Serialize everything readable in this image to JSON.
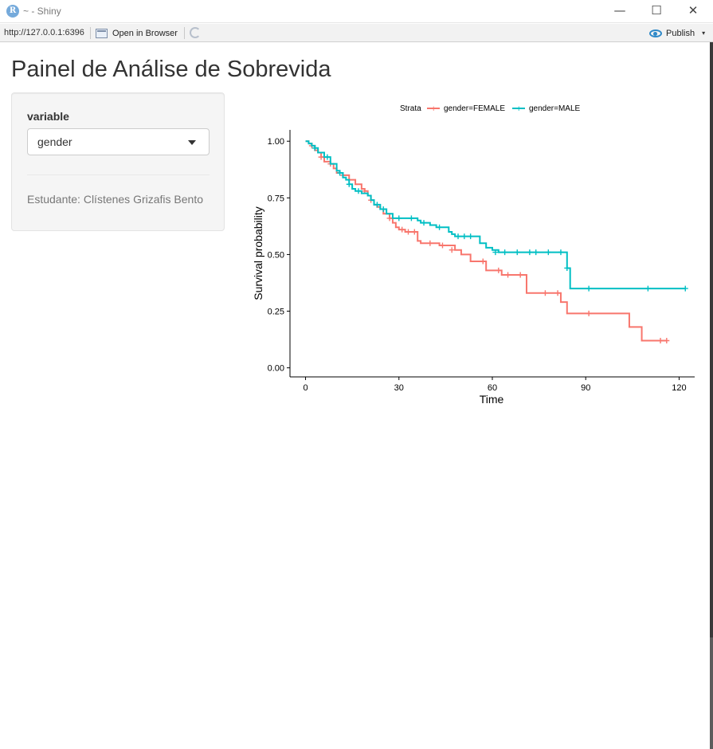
{
  "window": {
    "title": "~ - Shiny",
    "app_icon": "R",
    "minimize": "—",
    "maximize": "☐",
    "close": "✕"
  },
  "toolbar": {
    "url": "http://127.0.0.1:6396",
    "open_in_browser": "Open in Browser",
    "publish": "Publish",
    "publish_caret": "▾"
  },
  "page": {
    "title": "Painel de Análise de Sobrevida"
  },
  "sidebar": {
    "select_label": "variable",
    "select_value": "gender",
    "student": "Estudante: Clístenes Grizafis Bento"
  },
  "chart_data": {
    "type": "line",
    "title": "",
    "xlabel": "Time",
    "ylabel": "Survival probability",
    "xlim": [
      -5,
      125
    ],
    "ylim": [
      -0.04,
      1.05
    ],
    "xticks": [
      "0",
      "30",
      "60",
      "90",
      "120"
    ],
    "yticks": [
      "0.00",
      "0.25",
      "0.50",
      "0.75",
      "1.00"
    ],
    "legend_title": "Strata",
    "legend_position": "top",
    "grid": false,
    "series": [
      {
        "name": "gender=FEMALE",
        "color": "#F8766D",
        "x": [
          0,
          1,
          2,
          3,
          4,
          5,
          6,
          8,
          9,
          10,
          12,
          14,
          16,
          18,
          19,
          20,
          21,
          22,
          23,
          24,
          25,
          27,
          28,
          29,
          30,
          32,
          34,
          36,
          37,
          39,
          41,
          43,
          45,
          48,
          50,
          53,
          56,
          58,
          63,
          66,
          68,
          71,
          74,
          76,
          79,
          82,
          84,
          92,
          94,
          104,
          108,
          111,
          116
        ],
        "y": [
          1.0,
          0.99,
          0.98,
          0.96,
          0.95,
          0.93,
          0.91,
          0.9,
          0.88,
          0.86,
          0.85,
          0.83,
          0.81,
          0.79,
          0.78,
          0.76,
          0.74,
          0.72,
          0.71,
          0.7,
          0.68,
          0.66,
          0.64,
          0.62,
          0.61,
          0.6,
          0.6,
          0.56,
          0.55,
          0.55,
          0.55,
          0.54,
          0.54,
          0.52,
          0.5,
          0.47,
          0.47,
          0.43,
          0.41,
          0.41,
          0.41,
          0.33,
          0.33,
          0.33,
          0.33,
          0.29,
          0.24,
          0.24,
          0.24,
          0.18,
          0.12,
          0.12,
          0.12
        ],
        "censored": [
          [
            2,
            0.98
          ],
          [
            5,
            0.93
          ],
          [
            8,
            0.9
          ],
          [
            12,
            0.85
          ],
          [
            19,
            0.78
          ],
          [
            21,
            0.74
          ],
          [
            27,
            0.66
          ],
          [
            31,
            0.61
          ],
          [
            33,
            0.6
          ],
          [
            35,
            0.6
          ],
          [
            40,
            0.55
          ],
          [
            44,
            0.54
          ],
          [
            47,
            0.52
          ],
          [
            57,
            0.47
          ],
          [
            62,
            0.43
          ],
          [
            65,
            0.41
          ],
          [
            69,
            0.41
          ],
          [
            77,
            0.33
          ],
          [
            81,
            0.33
          ],
          [
            91,
            0.24
          ],
          [
            114,
            0.12
          ],
          [
            116,
            0.12
          ]
        ]
      },
      {
        "name": "gender=MALE",
        "color": "#00BFC4",
        "x": [
          0,
          1,
          2,
          3,
          4,
          6,
          8,
          10,
          11,
          12,
          13,
          14,
          15,
          16,
          18,
          20,
          21,
          22,
          24,
          26,
          28,
          32,
          36,
          37,
          40,
          42,
          44,
          46,
          47,
          48,
          50,
          54,
          56,
          58,
          60,
          62,
          65,
          70,
          75,
          80,
          83,
          84,
          85,
          90,
          110,
          122
        ],
        "y": [
          1.0,
          0.99,
          0.98,
          0.97,
          0.95,
          0.93,
          0.9,
          0.87,
          0.86,
          0.84,
          0.83,
          0.81,
          0.79,
          0.78,
          0.77,
          0.76,
          0.74,
          0.72,
          0.7,
          0.68,
          0.66,
          0.66,
          0.65,
          0.64,
          0.63,
          0.62,
          0.62,
          0.6,
          0.59,
          0.58,
          0.58,
          0.58,
          0.55,
          0.53,
          0.52,
          0.51,
          0.51,
          0.51,
          0.51,
          0.51,
          0.51,
          0.44,
          0.35,
          0.35,
          0.35,
          0.35
        ],
        "censored": [
          [
            3,
            0.97
          ],
          [
            7,
            0.93
          ],
          [
            11,
            0.86
          ],
          [
            14,
            0.81
          ],
          [
            17,
            0.78
          ],
          [
            23,
            0.72
          ],
          [
            25,
            0.7
          ],
          [
            30,
            0.66
          ],
          [
            34,
            0.66
          ],
          [
            38,
            0.64
          ],
          [
            43,
            0.62
          ],
          [
            49,
            0.58
          ],
          [
            51,
            0.58
          ],
          [
            53,
            0.58
          ],
          [
            61,
            0.51
          ],
          [
            64,
            0.51
          ],
          [
            68,
            0.51
          ],
          [
            72,
            0.51
          ],
          [
            74,
            0.51
          ],
          [
            78,
            0.51
          ],
          [
            82,
            0.51
          ],
          [
            84,
            0.44
          ],
          [
            91,
            0.35
          ],
          [
            110,
            0.35
          ],
          [
            122,
            0.35
          ]
        ]
      }
    ]
  }
}
